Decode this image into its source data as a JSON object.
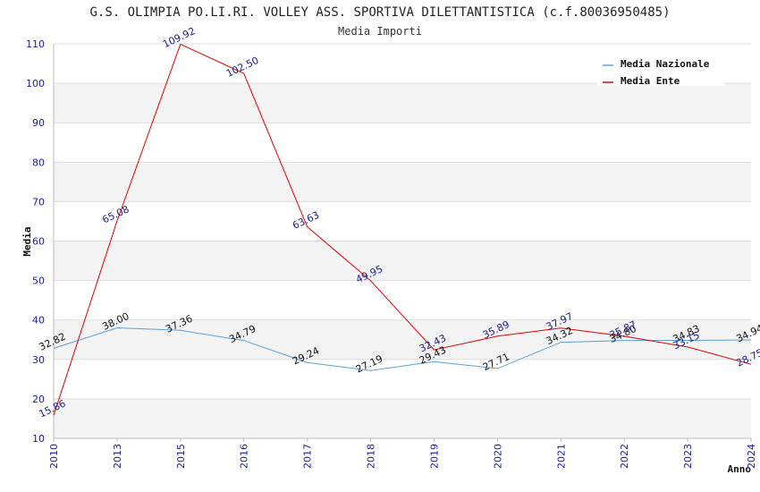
{
  "chart_data": {
    "type": "line",
    "title": "G.S. OLIMPIA PO.LI.RI. VOLLEY ASS. SPORTIVA DILETTANTISTICA (c.f.80036950485)",
    "subtitle": "Media Importi",
    "xlabel": "Anno",
    "ylabel": "Media",
    "ylim": [
      10,
      110
    ],
    "yticks": [
      "10",
      "20",
      "30",
      "40",
      "50",
      "60",
      "70",
      "80",
      "90",
      "100",
      "110"
    ],
    "categories": [
      "2010",
      "2013",
      "2015",
      "2016",
      "2017",
      "2018",
      "2019",
      "2020",
      "2021",
      "2022",
      "2023",
      "2024"
    ],
    "series": [
      {
        "name": "Media Nazionale",
        "color": "#5aa0d8",
        "values": [
          32.82,
          38.0,
          37.36,
          34.79,
          29.24,
          27.19,
          29.43,
          27.71,
          34.32,
          34.8,
          34.83,
          34.94
        ],
        "labels": [
          "32.82",
          "38.00",
          "37.36",
          "34.79",
          "29.24",
          "27.19",
          "29.43",
          "27.71",
          "34.32",
          "34.80",
          "34.83",
          "34.94"
        ]
      },
      {
        "name": "Media Ente",
        "color": "#e00000",
        "values": [
          15.86,
          65.08,
          109.92,
          102.5,
          63.63,
          49.95,
          32.43,
          35.89,
          37.97,
          35.87,
          33.15,
          28.75
        ],
        "labels": [
          "15.86",
          "65.08",
          "109.92",
          "102.50",
          "63.63",
          "49.95",
          "32.43",
          "35.89",
          "37.97",
          "35.87",
          "33.15",
          "28.75"
        ]
      }
    ],
    "legend": "top-right",
    "grid": true
  }
}
